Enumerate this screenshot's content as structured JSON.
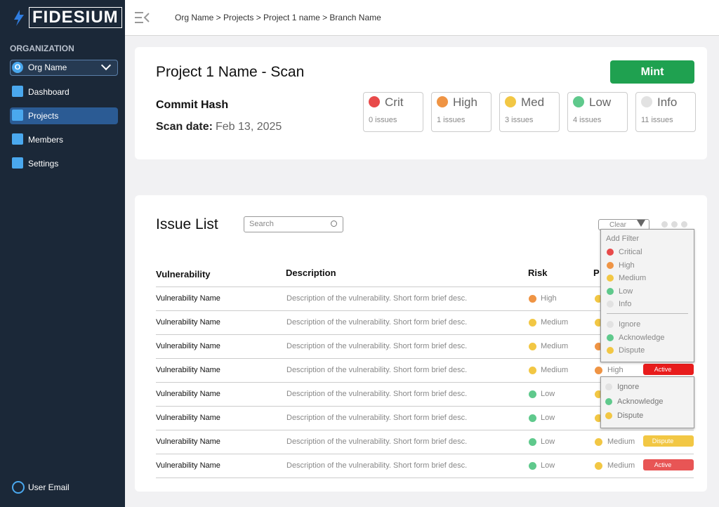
{
  "sidebar": {
    "logo": "FIDESIUM",
    "section": "ORGANIZATION",
    "org_initial": "O",
    "org_name": "Org Name",
    "nav": [
      "Dashboard",
      "Projects",
      "Members",
      "Settings"
    ],
    "active_nav": 1,
    "user": "User Email"
  },
  "breadcrumb": "Org Name > Projects > Project 1 name > Branch Name",
  "scan": {
    "title": "Project 1 Name - Scan",
    "button": "Mint",
    "commit_label": "Commit Hash",
    "date_label": "Scan date:",
    "date": "Feb 13, 2025",
    "severities": [
      {
        "name": "Crit",
        "count": "0 issues",
        "color": "#e84a4a"
      },
      {
        "name": "High",
        "count": "1 issues",
        "color": "#ef9444"
      },
      {
        "name": "Med",
        "count": "3 issues",
        "color": "#f2c744"
      },
      {
        "name": "Low",
        "count": "4 issues",
        "color": "#5fc98c"
      },
      {
        "name": "Info",
        "count": "11 issues",
        "color": "#e2e2e2"
      }
    ]
  },
  "issues": {
    "title": "Issue List",
    "search": "Search",
    "clear": "Clear",
    "columns": [
      "Vulnerability",
      "Description",
      "Risk",
      "P"
    ],
    "rows": [
      {
        "name": "Vulnerability Name",
        "description": "Description of the vulnerability. Short form brief desc.",
        "risk": "High",
        "risk_color": "#ef9444",
        "priority": null,
        "priority_color": "#f2c744",
        "status": null,
        "status_color": null
      },
      {
        "name": "Vulnerability Name",
        "description": "Description of the vulnerability. Short form brief desc.",
        "risk": "Medium",
        "risk_color": "#f2c744",
        "priority": null,
        "priority_color": "#f2c744",
        "status": null,
        "status_color": null
      },
      {
        "name": "Vulnerability Name",
        "description": "Description of the vulnerability. Short form brief desc.",
        "risk": "Medium",
        "risk_color": "#f2c744",
        "priority": null,
        "priority_color": "#ef9444",
        "status": null,
        "status_color": null
      },
      {
        "name": "Vulnerability Name",
        "description": "Description of the vulnerability. Short form brief desc.",
        "risk": "Medium",
        "risk_color": "#f2c744",
        "priority": "High",
        "priority_color": "#ef9444",
        "status": "Active",
        "status_color": "#e81c1c"
      },
      {
        "name": "Vulnerability Name",
        "description": "Description of the vulnerability. Short form brief desc.",
        "risk": "Low",
        "risk_color": "#5fc98c",
        "priority": null,
        "priority_color": "#f2c744",
        "status": null,
        "status_color": null
      },
      {
        "name": "Vulnerability Name",
        "description": "Description of the vulnerability. Short form brief desc.",
        "risk": "Low",
        "risk_color": "#5fc98c",
        "priority": null,
        "priority_color": "#f2c744",
        "status": null,
        "status_color": null
      },
      {
        "name": "Vulnerability Name",
        "description": "Description of the vulnerability. Short form brief desc.",
        "risk": "Low",
        "risk_color": "#5fc98c",
        "priority": "Medium",
        "priority_color": "#f2c744",
        "status": "Dispute",
        "status_color": "#f2c744"
      },
      {
        "name": "Vulnerability Name",
        "description": "Description of the vulnerability. Short form brief desc.",
        "risk": "Low",
        "risk_color": "#5fc98c",
        "priority": "Medium",
        "priority_color": "#f2c744",
        "status": "Active",
        "status_color": "#e85555"
      }
    ],
    "filter": {
      "title": "Add Filter",
      "severity": [
        {
          "name": "Critical",
          "color": "#e84a4a"
        },
        {
          "name": "High",
          "color": "#ef9444"
        },
        {
          "name": "Medium",
          "color": "#f2c744"
        },
        {
          "name": "Low",
          "color": "#5fc98c"
        },
        {
          "name": "Info",
          "color": "#e2e2e2"
        }
      ],
      "status": [
        {
          "name": "Ignore",
          "color": "#e2e2e2"
        },
        {
          "name": "Acknowledge",
          "color": "#5fc98c"
        },
        {
          "name": "Dispute",
          "color": "#f2c744"
        }
      ]
    },
    "status_menu": [
      {
        "name": "Ignore",
        "color": "#e2e2e2"
      },
      {
        "name": "Acknowledge",
        "color": "#5fc98c"
      },
      {
        "name": "Dispute",
        "color": "#f2c744"
      }
    ]
  }
}
